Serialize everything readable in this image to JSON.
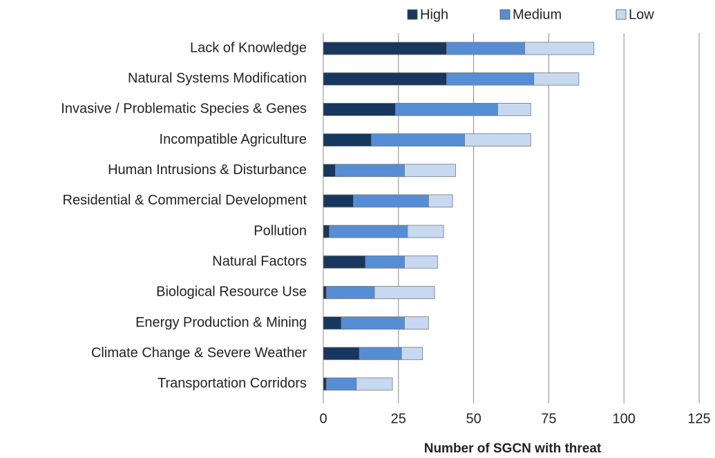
{
  "chart_data": {
    "type": "stacked_barh",
    "xlabel": "Number of SGCN with threat",
    "categories": [
      "Lack of Knowledge",
      "Natural Systems Modification",
      "Invasive / Problematic Species & Genes",
      "Incompatible Agriculture",
      "Human Intrusions & Disturbance",
      "Residential & Commercial Development",
      "Pollution",
      "Natural Factors",
      "Biological Resource Use",
      "Energy Production & Mining",
      "Climate Change & Severe Weather",
      "Transportation Corridors"
    ],
    "series": [
      {
        "name": "High",
        "color": "#17375e",
        "values": [
          41,
          41,
          24,
          16,
          4,
          10,
          2,
          14,
          1,
          6,
          12,
          1
        ]
      },
      {
        "name": "Medium",
        "color": "#558ed5",
        "values": [
          26,
          29,
          34,
          31,
          23,
          25,
          26,
          13,
          16,
          21,
          14,
          10
        ]
      },
      {
        "name": "Low",
        "color": "#c6d9f1",
        "values": [
          23,
          15,
          11,
          22,
          17,
          8,
          12,
          11,
          20,
          8,
          7,
          12
        ]
      }
    ],
    "xlim": [
      0,
      125
    ],
    "xticks": [
      0,
      25,
      50,
      75,
      100,
      125
    ],
    "grid": true,
    "legend": "top"
  }
}
